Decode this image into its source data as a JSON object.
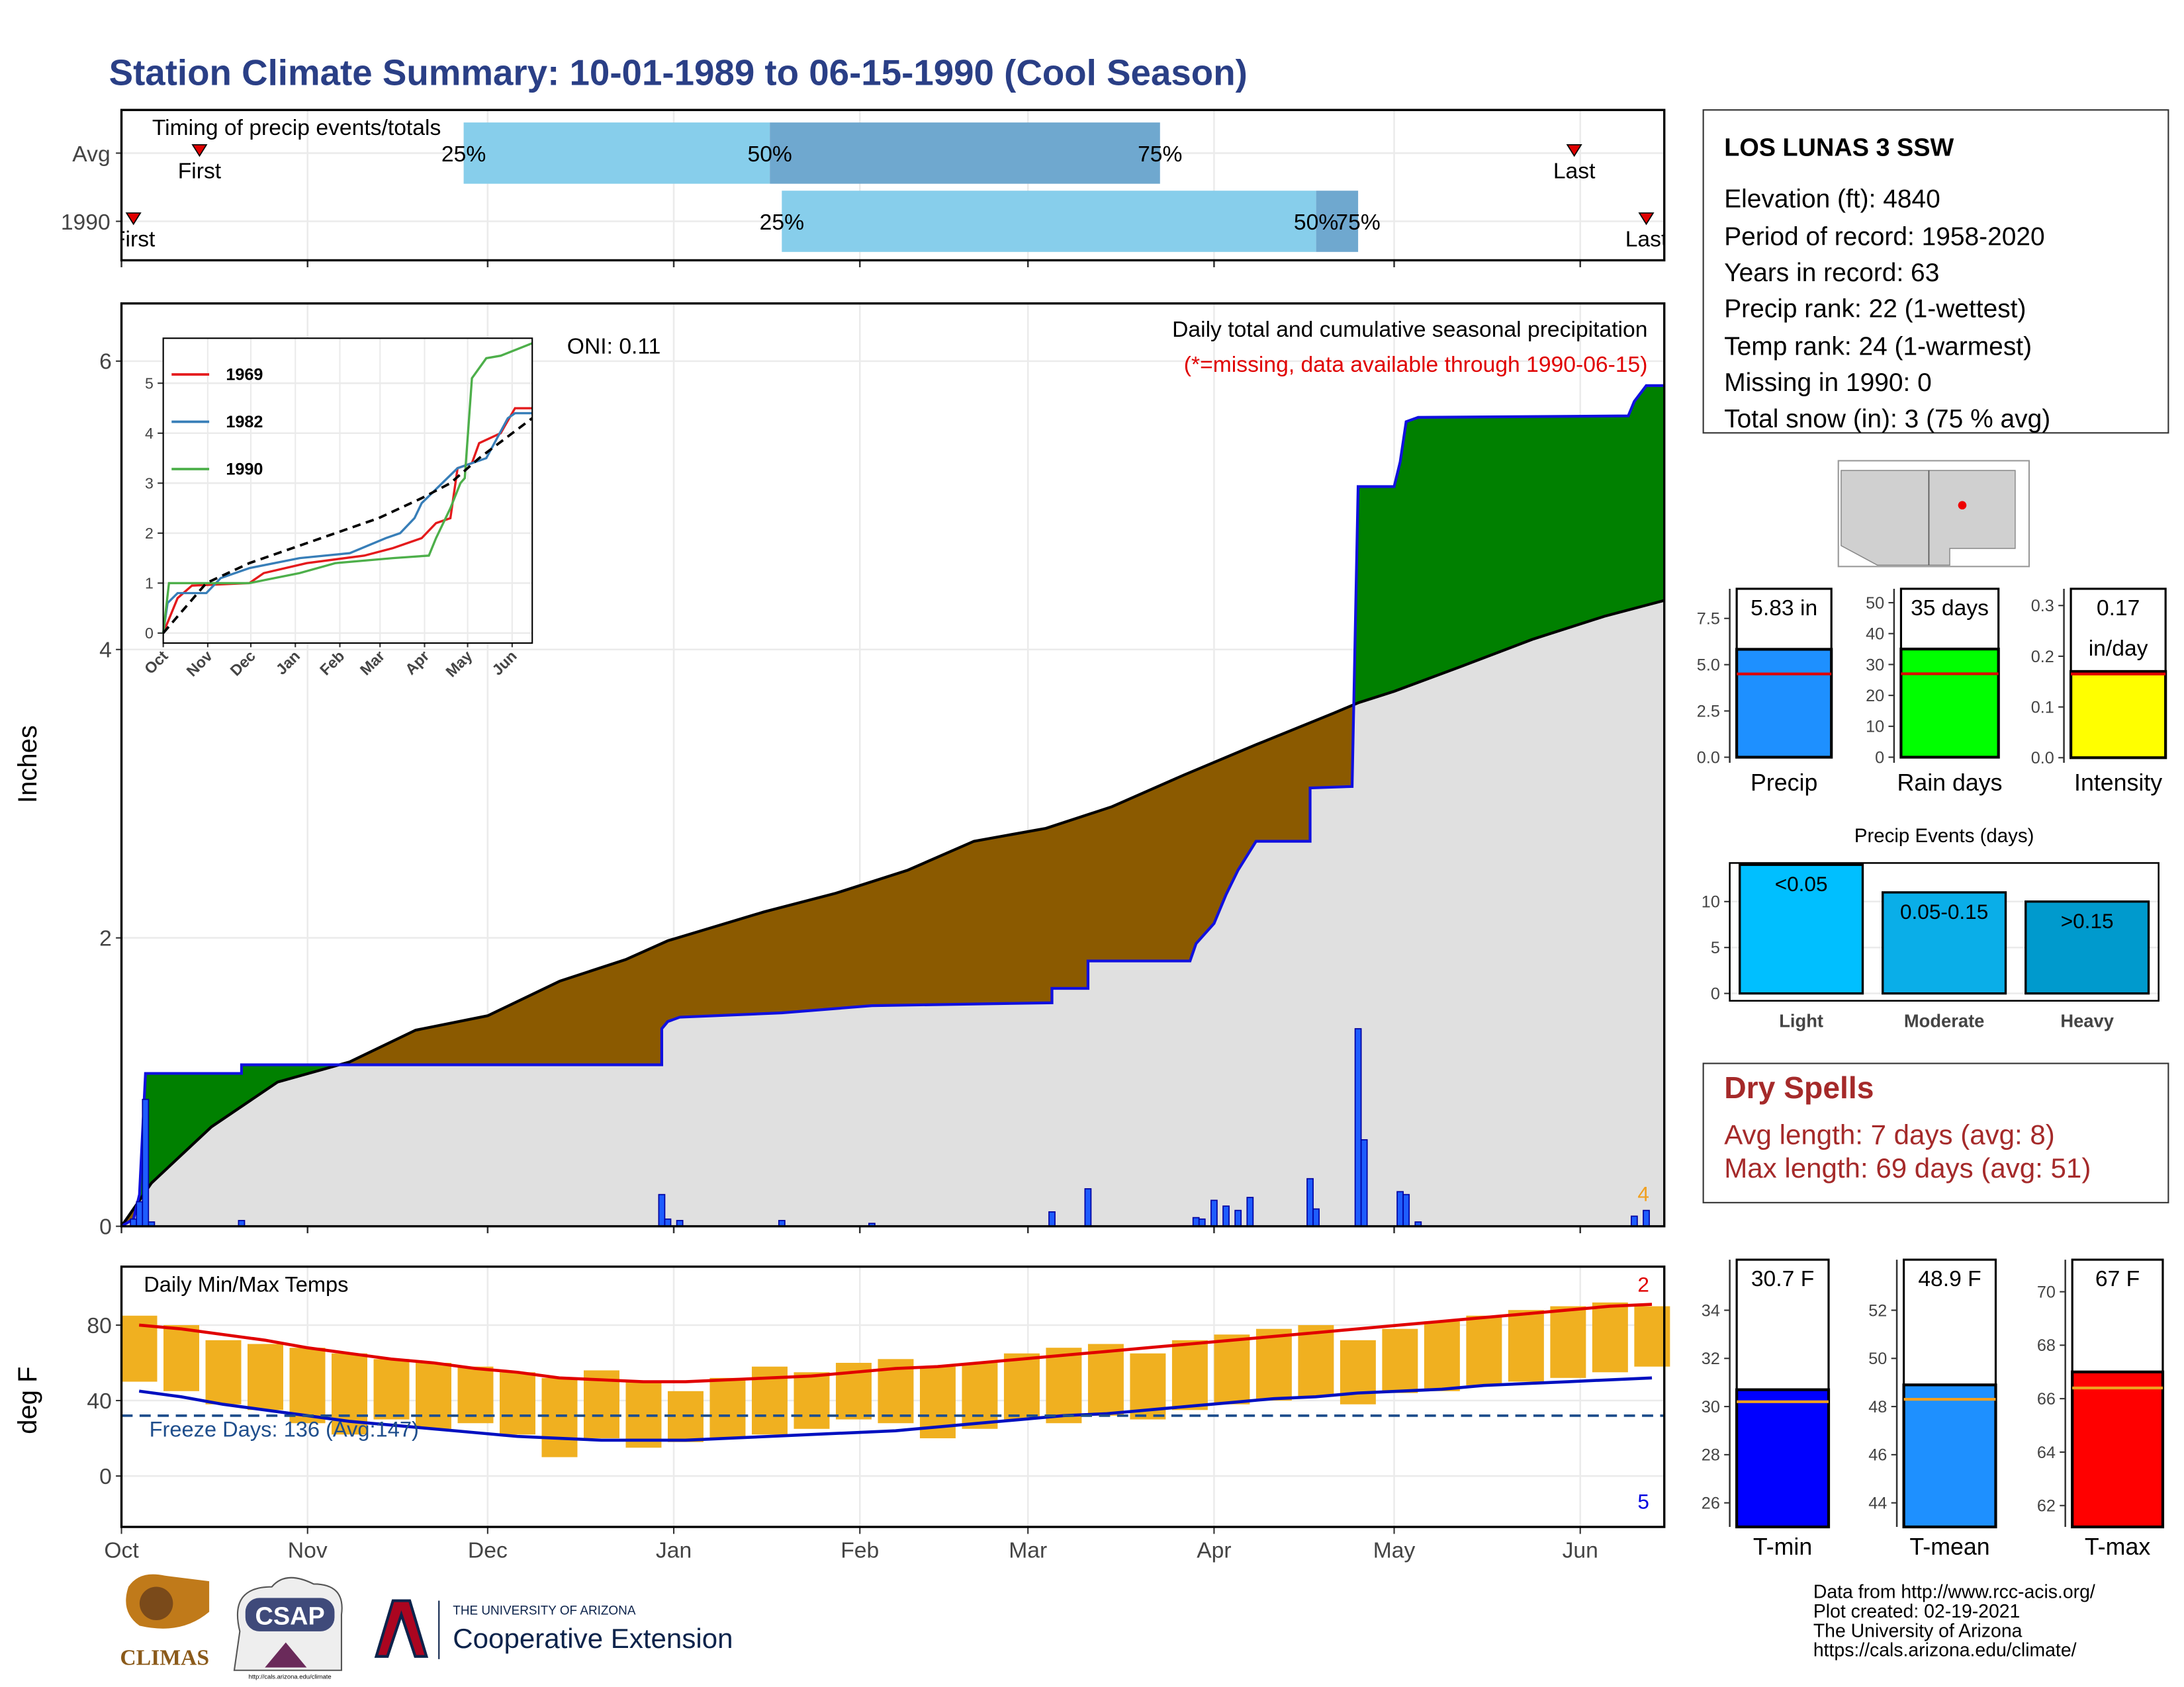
{
  "title": "Station Climate Summary: 10-01-1989 to 06-15-1990 (Cool Season)",
  "station": {
    "name": "LOS LUNAS 3 SSW",
    "lines": [
      "Elevation (ft): 4840",
      "Period of record: 1958-2020",
      "Years in record: 63",
      "Precip rank: 22 (1-wettest)",
      "Temp rank: 24 (1-warmest)",
      "Missing in 1990: 0",
      "Total snow (in): 3 (75 % avg)"
    ]
  },
  "dry_spells": {
    "title": "Dry Spells",
    "lines": [
      "Avg length: 7 days (avg: 8)",
      "Max length: 69 days (avg: 51)"
    ]
  },
  "footer": {
    "lines": [
      "Data from http://www.rcc-acis.org/",
      "Plot created: 02-19-2021",
      "The University of Arizona",
      "https://cals.arizona.edu/climate/"
    ]
  },
  "logos": {
    "climas": "CLIMAS",
    "csap": "CSAP",
    "csap_url": "http://cals.arizona.edu/climate",
    "ua": "THE UNIVERSITY OF ARIZONA",
    "extension": "Cooperative Extension"
  },
  "chart_data": [
    {
      "type": "timing",
      "title": "Timing of precip events/totals",
      "xlim": [
        0,
        257
      ],
      "xticks": [
        0,
        31,
        61,
        92,
        123,
        151,
        182,
        212,
        243
      ],
      "labels": {
        "first": "First",
        "last": "Last",
        "p25": "25%",
        "p50": "50%",
        "p75": "75%"
      },
      "colors": [
        "#87ceeb",
        "#6fa8cf"
      ],
      "marker_color": "#e00000",
      "rows": [
        {
          "name": "Avg",
          "first": 13,
          "p25": 57,
          "p50": 108,
          "p75": 173,
          "last": 242
        },
        {
          "name": "1990",
          "first": 2,
          "p25": 110,
          "p50": 199,
          "p75": 206,
          "last": 254
        }
      ]
    },
    {
      "type": "cumulative",
      "title": "Daily total and cumulative seasonal precipitation",
      "subtitle": "(*=missing, data available through 1990-06-15)",
      "annotation": "ONI: 0.11",
      "corner_label": "4",
      "ylabel": "Inches",
      "xlim": [
        0,
        257
      ],
      "ylim": [
        0,
        6.4
      ],
      "yticks": [
        0,
        2,
        4,
        6
      ],
      "xticks": [
        0,
        31,
        61,
        92,
        123,
        151,
        182,
        212,
        243
      ],
      "grid": true,
      "colors": {
        "normal": "#e0e0e0",
        "above": "#008000",
        "below": "#8b5a00",
        "observed": "#1010e0",
        "daily": "#1e5cff"
      },
      "normal": {
        "x": [
          0,
          5,
          15,
          26,
          38,
          49,
          61,
          73,
          84,
          91,
          107,
          119,
          131,
          142,
          154,
          165,
          177,
          189,
          202,
          206,
          212,
          223,
          235,
          247,
          257
        ],
        "values": [
          0,
          0.3,
          0.69,
          1.0,
          1.14,
          1.36,
          1.46,
          1.7,
          1.85,
          1.98,
          2.18,
          2.31,
          2.47,
          2.67,
          2.76,
          2.91,
          3.13,
          3.34,
          3.56,
          3.63,
          3.71,
          3.88,
          4.07,
          4.23,
          4.34
        ]
      },
      "observed": {
        "x": [
          0,
          2,
          3,
          4,
          20,
          20,
          90,
          90,
          91,
          93,
          110,
          125,
          155,
          155,
          161,
          161,
          178,
          179,
          182,
          184,
          186,
          189,
          198,
          198,
          205,
          206,
          212,
          213,
          214,
          216,
          251,
          252,
          254,
          257
        ],
        "values": [
          0,
          0.05,
          0.22,
          1.06,
          1.06,
          1.12,
          1.12,
          1.37,
          1.42,
          1.45,
          1.48,
          1.53,
          1.55,
          1.65,
          1.65,
          1.84,
          1.84,
          1.96,
          2.1,
          2.3,
          2.47,
          2.67,
          2.67,
          3.04,
          3.05,
          5.13,
          5.13,
          5.3,
          5.58,
          5.61,
          5.62,
          5.72,
          5.83,
          5.83
        ]
      },
      "daily": {
        "x": [
          2,
          3,
          4,
          5,
          20,
          90,
          91,
          93,
          110,
          125,
          155,
          161,
          179,
          180,
          182,
          184,
          186,
          188,
          198,
          199,
          206,
          207,
          213,
          214,
          216,
          252,
          254
        ],
        "values": [
          0.05,
          0.17,
          0.88,
          0.03,
          0.04,
          0.22,
          0.05,
          0.04,
          0.04,
          0.02,
          0.1,
          0.26,
          0.06,
          0.05,
          0.18,
          0.14,
          0.11,
          0.2,
          0.33,
          0.12,
          1.37,
          0.6,
          0.24,
          0.22,
          0.03,
          0.07,
          0.11
        ]
      }
    },
    {
      "type": "inset",
      "xlim": [
        0,
        257
      ],
      "ylim": [
        -0.2,
        5.9
      ],
      "yticks": [
        0,
        1,
        2,
        3,
        4,
        5
      ],
      "xticks": [
        {
          "value": 0,
          "label": "Oct"
        },
        {
          "value": 31,
          "label": "Nov"
        },
        {
          "value": 61,
          "label": "Dec"
        },
        {
          "value": 92,
          "label": "Jan"
        },
        {
          "value": 123,
          "label": "Feb"
        },
        {
          "value": 151,
          "label": "Mar"
        },
        {
          "value": 182,
          "label": "Apr"
        },
        {
          "value": 212,
          "label": "May"
        },
        {
          "value": 243,
          "label": "Jun"
        }
      ],
      "series": [
        {
          "name": "1969",
          "color": "#e41a1c",
          "x": [
            0,
            10,
            20,
            60,
            70,
            100,
            140,
            160,
            180,
            190,
            200,
            205,
            215,
            220,
            235,
            245,
            257
          ],
          "values": [
            0,
            0.7,
            0.95,
            1.0,
            1.2,
            1.4,
            1.55,
            1.7,
            1.9,
            2.2,
            2.3,
            3.3,
            3.4,
            3.8,
            4.0,
            4.5,
            4.5
          ]
        },
        {
          "name": "1982",
          "color": "#377eb8",
          "x": [
            0,
            3,
            10,
            30,
            40,
            60,
            95,
            130,
            155,
            165,
            175,
            180,
            205,
            225,
            240,
            245,
            257
          ],
          "values": [
            0,
            0.6,
            0.8,
            0.8,
            1.1,
            1.3,
            1.5,
            1.6,
            1.9,
            2.0,
            2.3,
            2.6,
            3.3,
            3.5,
            4.3,
            4.4,
            4.4
          ]
        },
        {
          "name": "1990",
          "color": "#4daf4a",
          "x": [
            0,
            4,
            60,
            95,
            120,
            160,
            185,
            190,
            200,
            207,
            210,
            215,
            225,
            235,
            257
          ],
          "values": [
            0,
            1.0,
            1.0,
            1.2,
            1.4,
            1.5,
            1.55,
            1.9,
            2.5,
            3.0,
            3.1,
            5.1,
            5.5,
            5.55,
            5.8
          ]
        },
        {
          "color": "#000000",
          "dashed": true,
          "x": [
            0,
            30,
            60,
            90,
            120,
            150,
            180,
            200,
            220,
            257
          ],
          "values": [
            0,
            1.0,
            1.4,
            1.7,
            2.0,
            2.3,
            2.7,
            3.0,
            3.5,
            4.3
          ]
        }
      ]
    },
    {
      "type": "temps",
      "title": "Daily Min/Max Temps",
      "ylabel": "deg F",
      "annotation": "Freeze Days: 136 (Avg:147)",
      "corner_top": "2",
      "corner_bottom": "5",
      "freeze": 32,
      "xlim": [
        0,
        257
      ],
      "ylim": [
        -27,
        111
      ],
      "yticks": [
        0,
        40,
        80
      ],
      "grid": true,
      "xticks": [
        {
          "value": 0,
          "label": "Oct"
        },
        {
          "value": 31,
          "label": "Nov"
        },
        {
          "value": 61,
          "label": "Dec"
        },
        {
          "value": 92,
          "label": "Jan"
        },
        {
          "value": 123,
          "label": "Feb"
        },
        {
          "value": 151,
          "label": "Mar"
        },
        {
          "value": 182,
          "label": "Apr"
        },
        {
          "value": 212,
          "label": "May"
        },
        {
          "value": 243,
          "label": "Jun"
        }
      ],
      "colors": {
        "bar": "#f0b020",
        "normal_max": "#e00000",
        "normal_min": "#0010c0",
        "freeze": "#1f4e8c"
      },
      "x": [
        0,
        7,
        14,
        21,
        28,
        35,
        42,
        49,
        56,
        63,
        70,
        77,
        84,
        91,
        98,
        105,
        112,
        119,
        126,
        133,
        140,
        147,
        154,
        161,
        168,
        175,
        182,
        189,
        196,
        203,
        210,
        217,
        224,
        231,
        238,
        245,
        252
      ],
      "max": [
        85,
        80,
        72,
        70,
        68,
        65,
        62,
        60,
        58,
        55,
        52,
        56,
        50,
        45,
        52,
        58,
        55,
        60,
        62,
        58,
        60,
        65,
        68,
        70,
        65,
        72,
        75,
        78,
        80,
        72,
        78,
        82,
        85,
        88,
        90,
        92,
        90
      ],
      "min": [
        50,
        45,
        38,
        35,
        28,
        22,
        30,
        25,
        28,
        22,
        10,
        20,
        15,
        18,
        20,
        22,
        25,
        30,
        28,
        20,
        25,
        30,
        28,
        32,
        30,
        35,
        38,
        40,
        42,
        38,
        44,
        45,
        48,
        50,
        52,
        55,
        58
      ],
      "normal_max": [
        80,
        78,
        75,
        72,
        68,
        65,
        62,
        60,
        57,
        55,
        52,
        51,
        50,
        50,
        51,
        52,
        53,
        55,
        57,
        58,
        60,
        62,
        64,
        66,
        68,
        70,
        72,
        74,
        76,
        78,
        80,
        82,
        84,
        86,
        88,
        90,
        91
      ],
      "normal_min": [
        45,
        42,
        38,
        35,
        32,
        29,
        27,
        25,
        23,
        21,
        20,
        19,
        19,
        19,
        20,
        21,
        22,
        23,
        24,
        26,
        28,
        30,
        32,
        33,
        35,
        37,
        39,
        41,
        42,
        44,
        45,
        46,
        48,
        49,
        50,
        51,
        52
      ]
    },
    {
      "type": "mini_bar",
      "label": "Precip",
      "value": 5.83,
      "value_label": "5.83 in",
      "average": 4.5,
      "ylim": [
        -0.3,
        9.1
      ],
      "yticks": [
        {
          "value": 0,
          "label": "0.0"
        },
        2.5,
        {
          "value": 5,
          "label": "5.0"
        },
        7.5
      ],
      "color": "#1e90ff",
      "average_color": "#e00000"
    },
    {
      "type": "mini_bar",
      "label": "Rain days",
      "value": 35,
      "value_label": "35 days",
      "average": 27,
      "ylim": [
        -1.8,
        54.5
      ],
      "yticks": [
        0,
        10,
        20,
        30,
        40,
        50
      ],
      "color": "#00ff00",
      "average_color": "#e00000"
    },
    {
      "type": "mini_bar",
      "label": "Intensity",
      "value": 0.17,
      "value_label": "0.17",
      "unit_label": "in/day",
      "average": 0.165,
      "ylim": [
        -0.01,
        0.333
      ],
      "yticks": [
        {
          "value": 0,
          "label": "0.0"
        },
        0.1,
        0.2,
        0.3
      ],
      "color": "#ffff00",
      "average_color": "#e00000"
    },
    {
      "type": "bar",
      "title": "Precip Events (days)",
      "categories": [
        "Light",
        "Moderate",
        "Heavy"
      ],
      "values": [
        14,
        11,
        10
      ],
      "bin_labels": [
        "<0.05",
        "0.05-0.15",
        ">0.15"
      ],
      "colors": [
        "#00bfff",
        "#0aaee8",
        "#009acd"
      ],
      "ylim": [
        -0.8,
        14.2
      ],
      "yticks": [
        0,
        5,
        10
      ],
      "grid": true
    },
    {
      "type": "mini_bar",
      "label": "T-min",
      "value": 30.7,
      "value_label": "30.7 F",
      "average": 30.2,
      "ylim": [
        25,
        36.1
      ],
      "yticks": [
        26,
        28,
        30,
        32,
        34
      ],
      "color": "#0000ff",
      "average_color": "#f0a020"
    },
    {
      "type": "mini_bar",
      "label": "T-mean",
      "value": 48.9,
      "value_label": "48.9 F",
      "average": 48.3,
      "ylim": [
        43,
        54.1
      ],
      "yticks": [
        44,
        46,
        48,
        50,
        52
      ],
      "color": "#1e90ff",
      "average_color": "#f0a020"
    },
    {
      "type": "mini_bar",
      "label": "T-max",
      "value": 67,
      "value_label": "67 F",
      "average": 66.4,
      "ylim": [
        61.2,
        71.2
      ],
      "yticks": [
        62,
        64,
        66,
        68,
        70
      ],
      "color": "#ff0000",
      "average_color": "#f0a020"
    }
  ]
}
